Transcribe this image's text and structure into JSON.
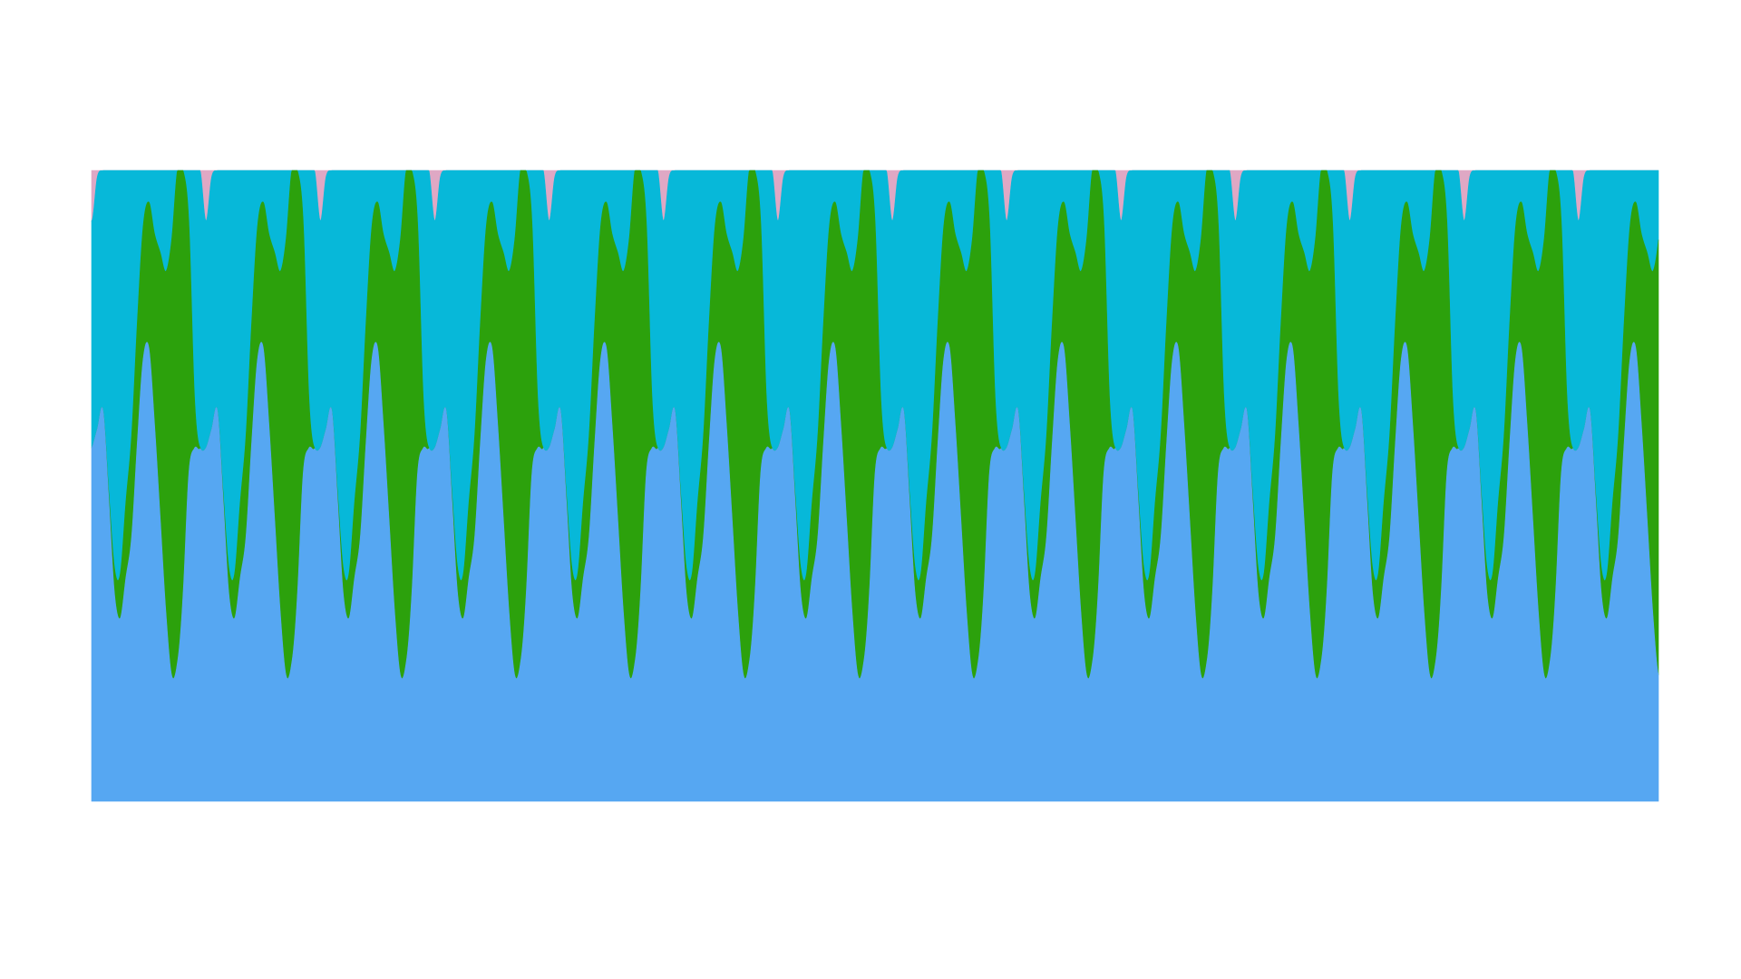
{
  "chart_data": {
    "type": "area",
    "stacked": true,
    "normalized": true,
    "title": "",
    "xlabel": "",
    "ylabel": "",
    "grid": false,
    "axes_visible": false,
    "legend": "none",
    "xlim": [
      0,
      14
    ],
    "ylim": [
      0,
      1
    ],
    "cycles": 13.7,
    "series": [
      {
        "color": "#56a7f2",
        "shape": [
          0.56,
          0.59,
          0.62,
          0.48,
          0.33,
          0.29,
          0.355,
          0.42,
          0.57,
          0.7,
          0.72,
          0.6,
          0.45,
          0.3,
          0.2,
          0.22,
          0.33,
          0.52,
          0.56,
          0.56
        ]
      },
      {
        "color": "#2ca10c",
        "shape": [
          0.0,
          0.0,
          0.0,
          0.01,
          0.04,
          0.07,
          0.12,
          0.16,
          0.19,
          0.21,
          0.23,
          0.3,
          0.42,
          0.54,
          0.69,
          0.78,
          0.67,
          0.4,
          0.08,
          0.0
        ]
      },
      {
        "color": "#07b8d9",
        "shape": [
          0.36,
          0.4,
          0.38,
          0.51,
          0.63,
          0.64,
          0.525,
          0.42,
          0.24,
          0.09,
          0.05,
          0.1,
          0.13,
          0.16,
          0.11,
          0.0,
          0.0,
          0.08,
          0.36,
          0.44
        ]
      },
      {
        "color": "#dfa8c4",
        "shape": [
          0.08,
          0.01,
          0.0,
          0.0,
          0.0,
          0.0,
          0.0,
          0.0,
          0.0,
          0.0,
          0.0,
          0.0,
          0.0,
          0.0,
          0.0,
          0.0,
          0.0,
          0.0,
          0.0,
          0.0
        ]
      }
    ]
  }
}
